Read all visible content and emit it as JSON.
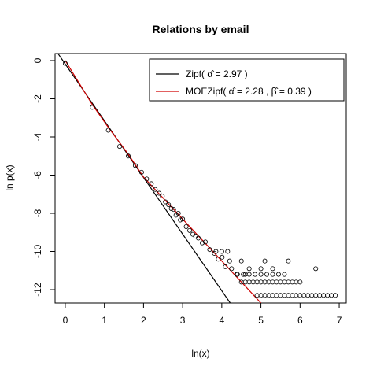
{
  "chart_data": {
    "type": "scatter",
    "title": "Relations by email",
    "xlabel": "ln(x)",
    "ylabel": "ln p(x)",
    "xlim": [
      -0.26,
      7.18
    ],
    "ylim": [
      -12.7,
      0.37
    ],
    "xticks": [
      0,
      1,
      2,
      3,
      4,
      5,
      6,
      7
    ],
    "yticks": [
      0,
      -2,
      -4,
      -6,
      -8,
      -10,
      -12
    ],
    "point_color": "#000000",
    "x": [
      0,
      0.69,
      1.1,
      1.39,
      1.61,
      1.79,
      1.95,
      2.08,
      2.2,
      2.3,
      2.4,
      2.48,
      2.56,
      2.64,
      2.71,
      2.77,
      2.83,
      2.89,
      2.94,
      3.0,
      3.09,
      3.18,
      3.26,
      3.33,
      3.4,
      3.5,
      3.58,
      3.69,
      3.81,
      3.91,
      4.01,
      4.09,
      4.25,
      4.38,
      4.5,
      4.6,
      4.9,
      5.0,
      5.1,
      5.2,
      5.3,
      5.4,
      5.5,
      5.6,
      5.7,
      5.8,
      5.9,
      6.0,
      6.1,
      6.2,
      6.3,
      6.4,
      6.5,
      6.6,
      6.7,
      6.8,
      6.9,
      4.6,
      4.7,
      4.8,
      4.9,
      5.0,
      5.1,
      5.2,
      5.3,
      5.4,
      5.5,
      5.6,
      5.7,
      5.8,
      5.9,
      6.0,
      4.4,
      4.55,
      4.7,
      4.85,
      5.0,
      5.15,
      5.3,
      5.45,
      5.6,
      4.7,
      5.0,
      5.3,
      6.4,
      4.2,
      4.5,
      5.1,
      5.7,
      3.85,
      4.0,
      4.15
    ],
    "values": [
      -0.15,
      -2.45,
      -3.65,
      -4.5,
      -5.0,
      -5.5,
      -5.85,
      -6.2,
      -6.45,
      -6.75,
      -6.95,
      -7.1,
      -7.4,
      -7.55,
      -7.75,
      -7.8,
      -8.1,
      -8.0,
      -8.35,
      -8.3,
      -8.7,
      -8.9,
      -9.1,
      -9.2,
      -9.3,
      -9.55,
      -9.5,
      -9.9,
      -10.1,
      -10.4,
      -10.3,
      -10.8,
      -10.9,
      -11.2,
      -11.6,
      -11.2,
      -12.3,
      -12.3,
      -12.3,
      -12.3,
      -12.3,
      -12.3,
      -12.3,
      -12.3,
      -12.3,
      -12.3,
      -12.3,
      -12.3,
      -12.3,
      -12.3,
      -12.3,
      -12.3,
      -12.3,
      -12.3,
      -12.3,
      -12.3,
      -12.3,
      -11.6,
      -11.6,
      -11.6,
      -11.6,
      -11.6,
      -11.6,
      -11.6,
      -11.6,
      -11.6,
      -11.6,
      -11.6,
      -11.6,
      -11.6,
      -11.6,
      -11.6,
      -11.2,
      -11.2,
      -11.2,
      -11.2,
      -11.2,
      -11.2,
      -11.2,
      -11.2,
      -11.2,
      -10.9,
      -10.9,
      -10.9,
      -10.9,
      -10.5,
      -10.5,
      -10.5,
      -10.5,
      -10.0,
      -10.0,
      -10.0
    ],
    "series": [
      {
        "name": "Zipf( α̂ = 2.97 )",
        "color": "#000000",
        "x": [
          -0.3,
          4.3
        ],
        "values": [
          0.71,
          -12.95
        ]
      },
      {
        "name": "MOEZipf( α̂ = 2.28 ,  β̂ = 0.39 )",
        "color": "#d00000",
        "x": [
          0,
          0.69,
          1.1,
          1.39,
          1.61,
          2,
          2.5,
          3,
          3.5,
          4,
          4.5,
          5
        ],
        "values": [
          0,
          -2.3,
          -3.5,
          -4.3,
          -4.9,
          -6.1,
          -7.2,
          -8.3,
          -9.4,
          -10.5,
          -11.6,
          -12.7
        ]
      }
    ]
  }
}
